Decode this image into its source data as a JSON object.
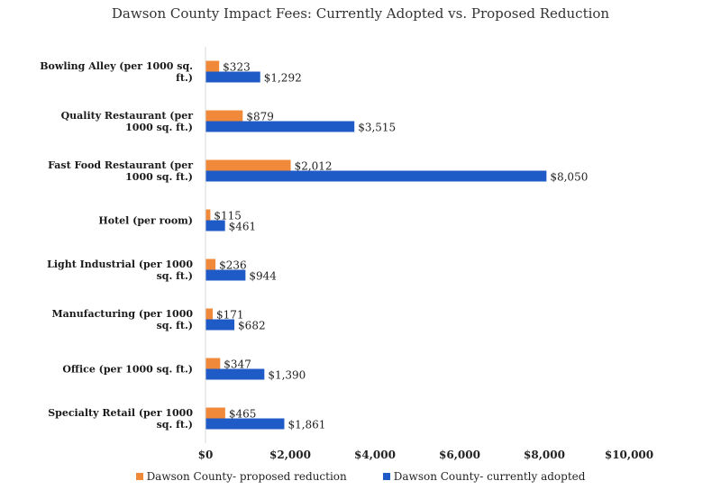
{
  "chart_data": {
    "type": "bar",
    "orientation": "horizontal",
    "title": "Dawson County Impact Fees: Currently Adopted vs. Proposed Reduction",
    "categories": [
      [
        "Bowling Alley (per 1000 sq.",
        "ft.)"
      ],
      [
        "Quality Restaurant (per",
        "1000 sq. ft.)"
      ],
      [
        "Fast Food Restaurant (per",
        "1000 sq. ft.)"
      ],
      [
        "Hotel (per room)"
      ],
      [
        "Light Industrial (per 1000",
        "sq. ft.)"
      ],
      [
        "Manufacturing (per 1000",
        "sq. ft.)"
      ],
      [
        "Office (per 1000 sq. ft.)"
      ],
      [
        "Specialty Retail (per 1000",
        "sq. ft.)"
      ]
    ],
    "series": [
      {
        "name": "Dawson County- proposed reduction",
        "color": "#F0893A",
        "values": [
          323,
          879,
          2012,
          115,
          236,
          171,
          347,
          465
        ],
        "labels": [
          "$323",
          "$879",
          "$2,012",
          "$115",
          "$236",
          "$171",
          "$347",
          "$465"
        ]
      },
      {
        "name": "Dawson County- currently adopted",
        "color": "#1F5BC6",
        "values": [
          1292,
          3515,
          8050,
          461,
          944,
          682,
          1390,
          1861
        ],
        "labels": [
          "$1,292",
          "$3,515",
          "$8,050",
          "$461",
          "$944",
          "$682",
          "$1,390",
          "$1,861"
        ]
      }
    ],
    "xlim": [
      0,
      10000
    ],
    "xticks": [
      "$0",
      "$2,000",
      "$4,000",
      "$6,000",
      "$8,000",
      "$10,000"
    ],
    "xtick_values": [
      0,
      2000,
      4000,
      6000,
      8000,
      10000
    ],
    "grid": false,
    "legend_position": "bottom"
  }
}
